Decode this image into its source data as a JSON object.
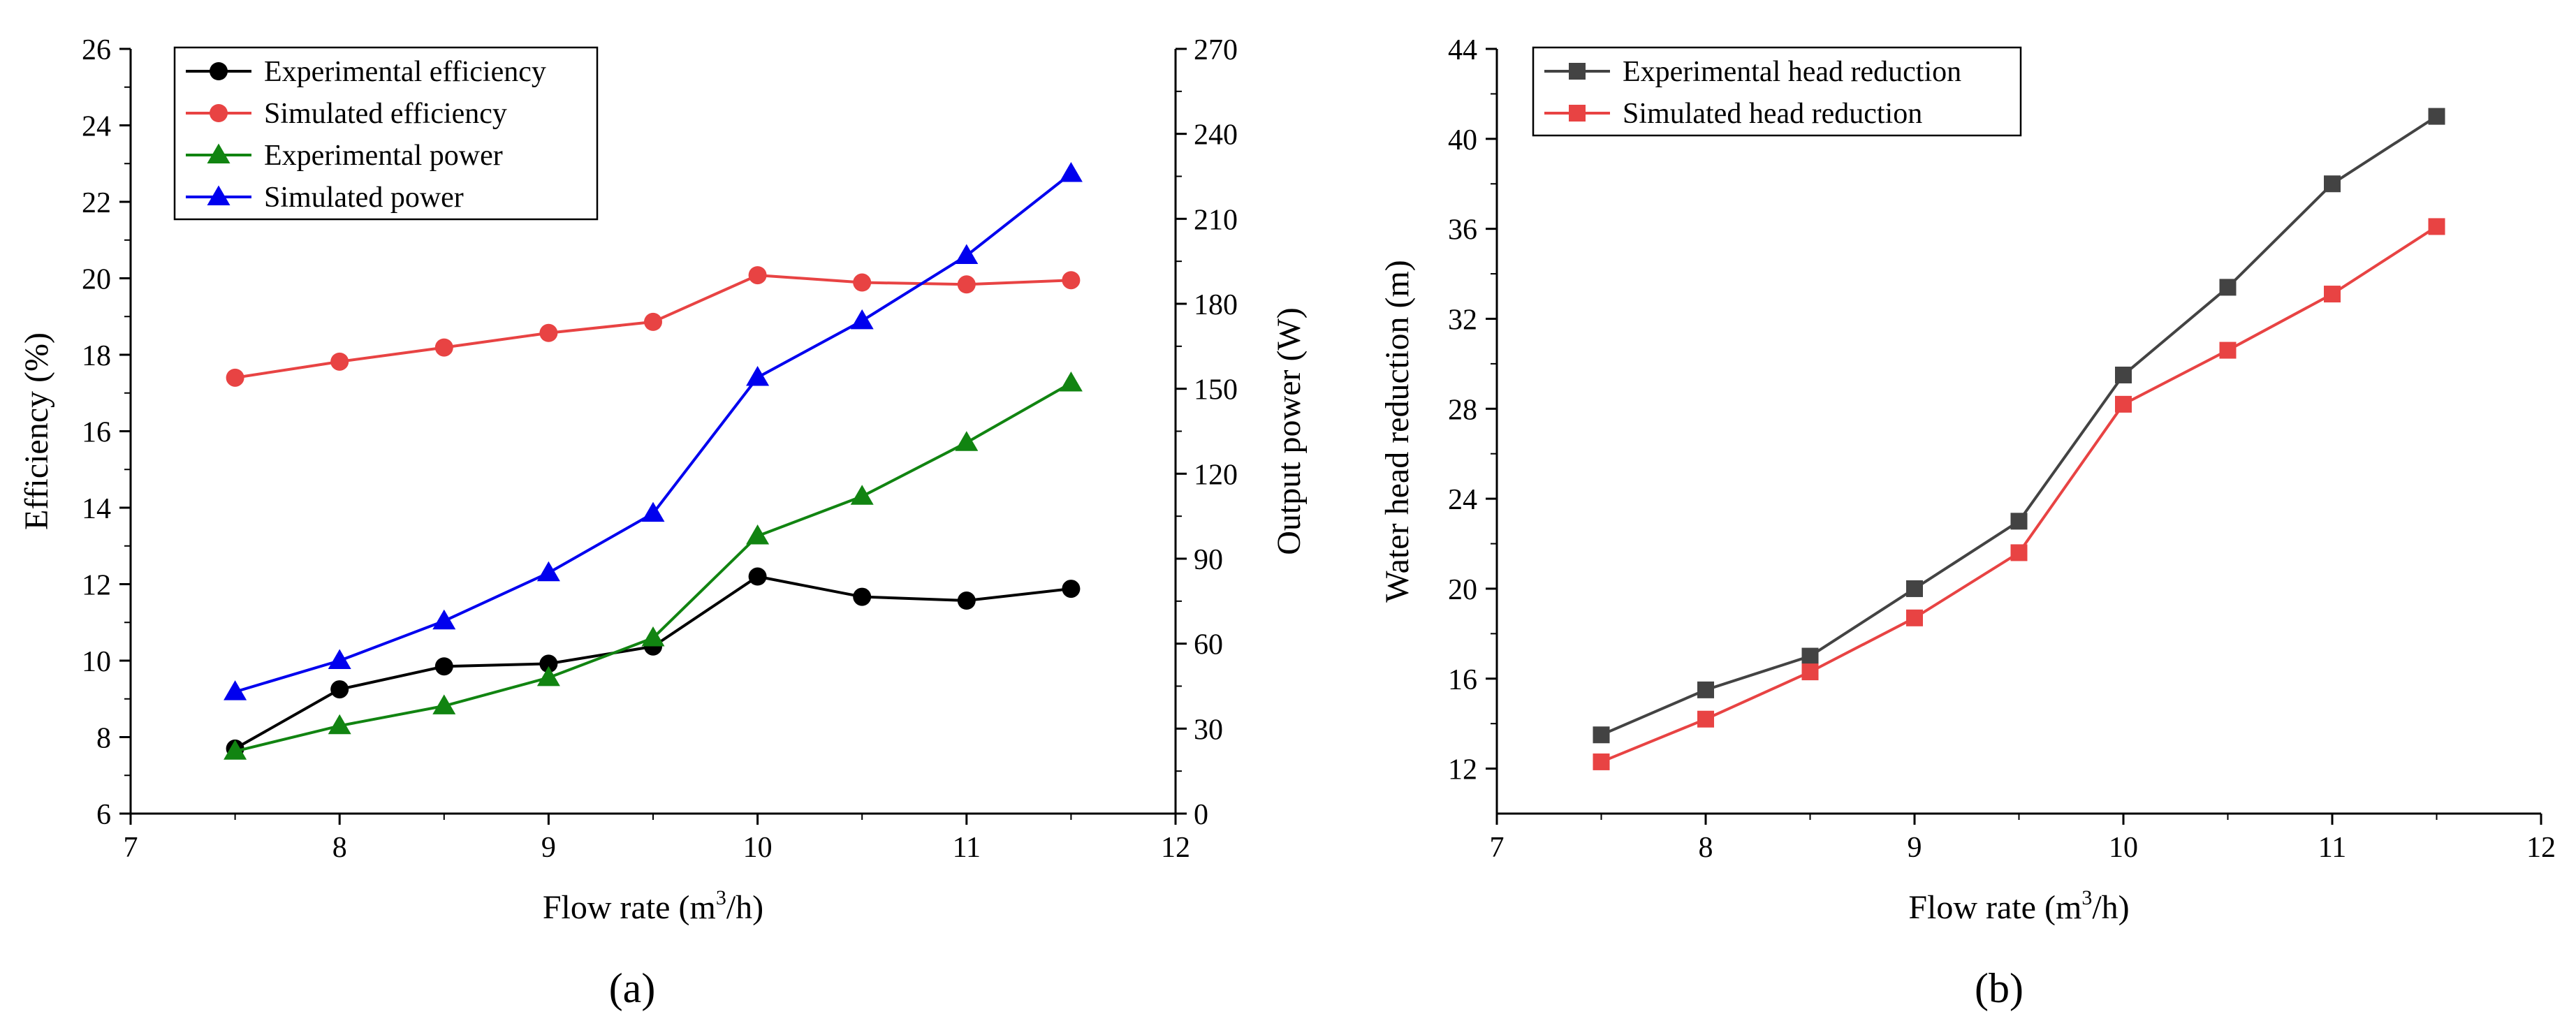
{
  "chart_data": [
    {
      "type": "line",
      "panel_label": "(a)",
      "xlabel": "Flow rate (m",
      "xlabel_sup": "3",
      "xlabel_tail": "/h)",
      "ylabel": "Efficiency (%)",
      "y2label": "Output power (W)",
      "xlim": [
        7,
        12
      ],
      "ylim": [
        6,
        26
      ],
      "y2lim": [
        0,
        270
      ],
      "x_ticks": [
        "7",
        "8",
        "9",
        "10",
        "11",
        "12"
      ],
      "y_ticks": [
        "6",
        "8",
        "10",
        "12",
        "14",
        "16",
        "18",
        "20",
        "22",
        "24",
        "26"
      ],
      "y2_ticks": [
        "0",
        "30",
        "60",
        "90",
        "120",
        "150",
        "180",
        "210",
        "240",
        "270"
      ],
      "x": [
        7.5,
        8,
        8.5,
        9,
        9.5,
        10,
        10.5,
        11,
        11.5
      ],
      "legend_position": "top-left",
      "series": [
        {
          "name": "Experimental efficiency",
          "axis": "left",
          "color": "#000000",
          "marker": "circle",
          "values": [
            7.7,
            9.25,
            9.85,
            9.92,
            10.37,
            12.2,
            11.67,
            11.57,
            11.88
          ]
        },
        {
          "name": "Simulated efficiency",
          "axis": "left",
          "color": "#e84343",
          "marker": "circle",
          "values": [
            17.4,
            17.82,
            18.19,
            18.57,
            18.86,
            20.08,
            19.89,
            19.84,
            19.95
          ]
        },
        {
          "name": "Experimental power",
          "axis": "right",
          "color": "#118411",
          "marker": "triangle",
          "values": [
            22,
            31,
            38,
            48,
            62,
            98,
            112,
            131,
            152
          ]
        },
        {
          "name": "Simulated power",
          "axis": "right",
          "color": "#0000ee",
          "marker": "triangle",
          "values": [
            43,
            54,
            68,
            85,
            106,
            154,
            174,
            197,
            226
          ]
        }
      ]
    },
    {
      "type": "line",
      "panel_label": "(b)",
      "xlabel": "Flow rate (m",
      "xlabel_sup": "3",
      "xlabel_tail": "/h)",
      "ylabel": "Water head reduction (m)",
      "xlim": [
        7,
        12
      ],
      "ylim": [
        10,
        44
      ],
      "x_ticks": [
        "7",
        "8",
        "9",
        "10",
        "11",
        "12"
      ],
      "y_ticks": [
        "12",
        "16",
        "20",
        "24",
        "28",
        "32",
        "36",
        "40",
        "44"
      ],
      "x": [
        7.5,
        8,
        8.5,
        9,
        9.5,
        10,
        10.5,
        11,
        11.5
      ],
      "legend_position": "top-left",
      "series": [
        {
          "name": "Experimental head reduction",
          "color": "#434343",
          "marker": "square",
          "values": [
            13.5,
            15.5,
            17.0,
            20.0,
            23.0,
            29.5,
            33.4,
            38.0,
            41.0
          ]
        },
        {
          "name": "Simulated head reduction",
          "color": "#e84343",
          "marker": "square",
          "values": [
            12.3,
            14.2,
            16.3,
            18.7,
            21.6,
            28.2,
            30.6,
            33.1,
            36.1
          ]
        }
      ]
    }
  ]
}
